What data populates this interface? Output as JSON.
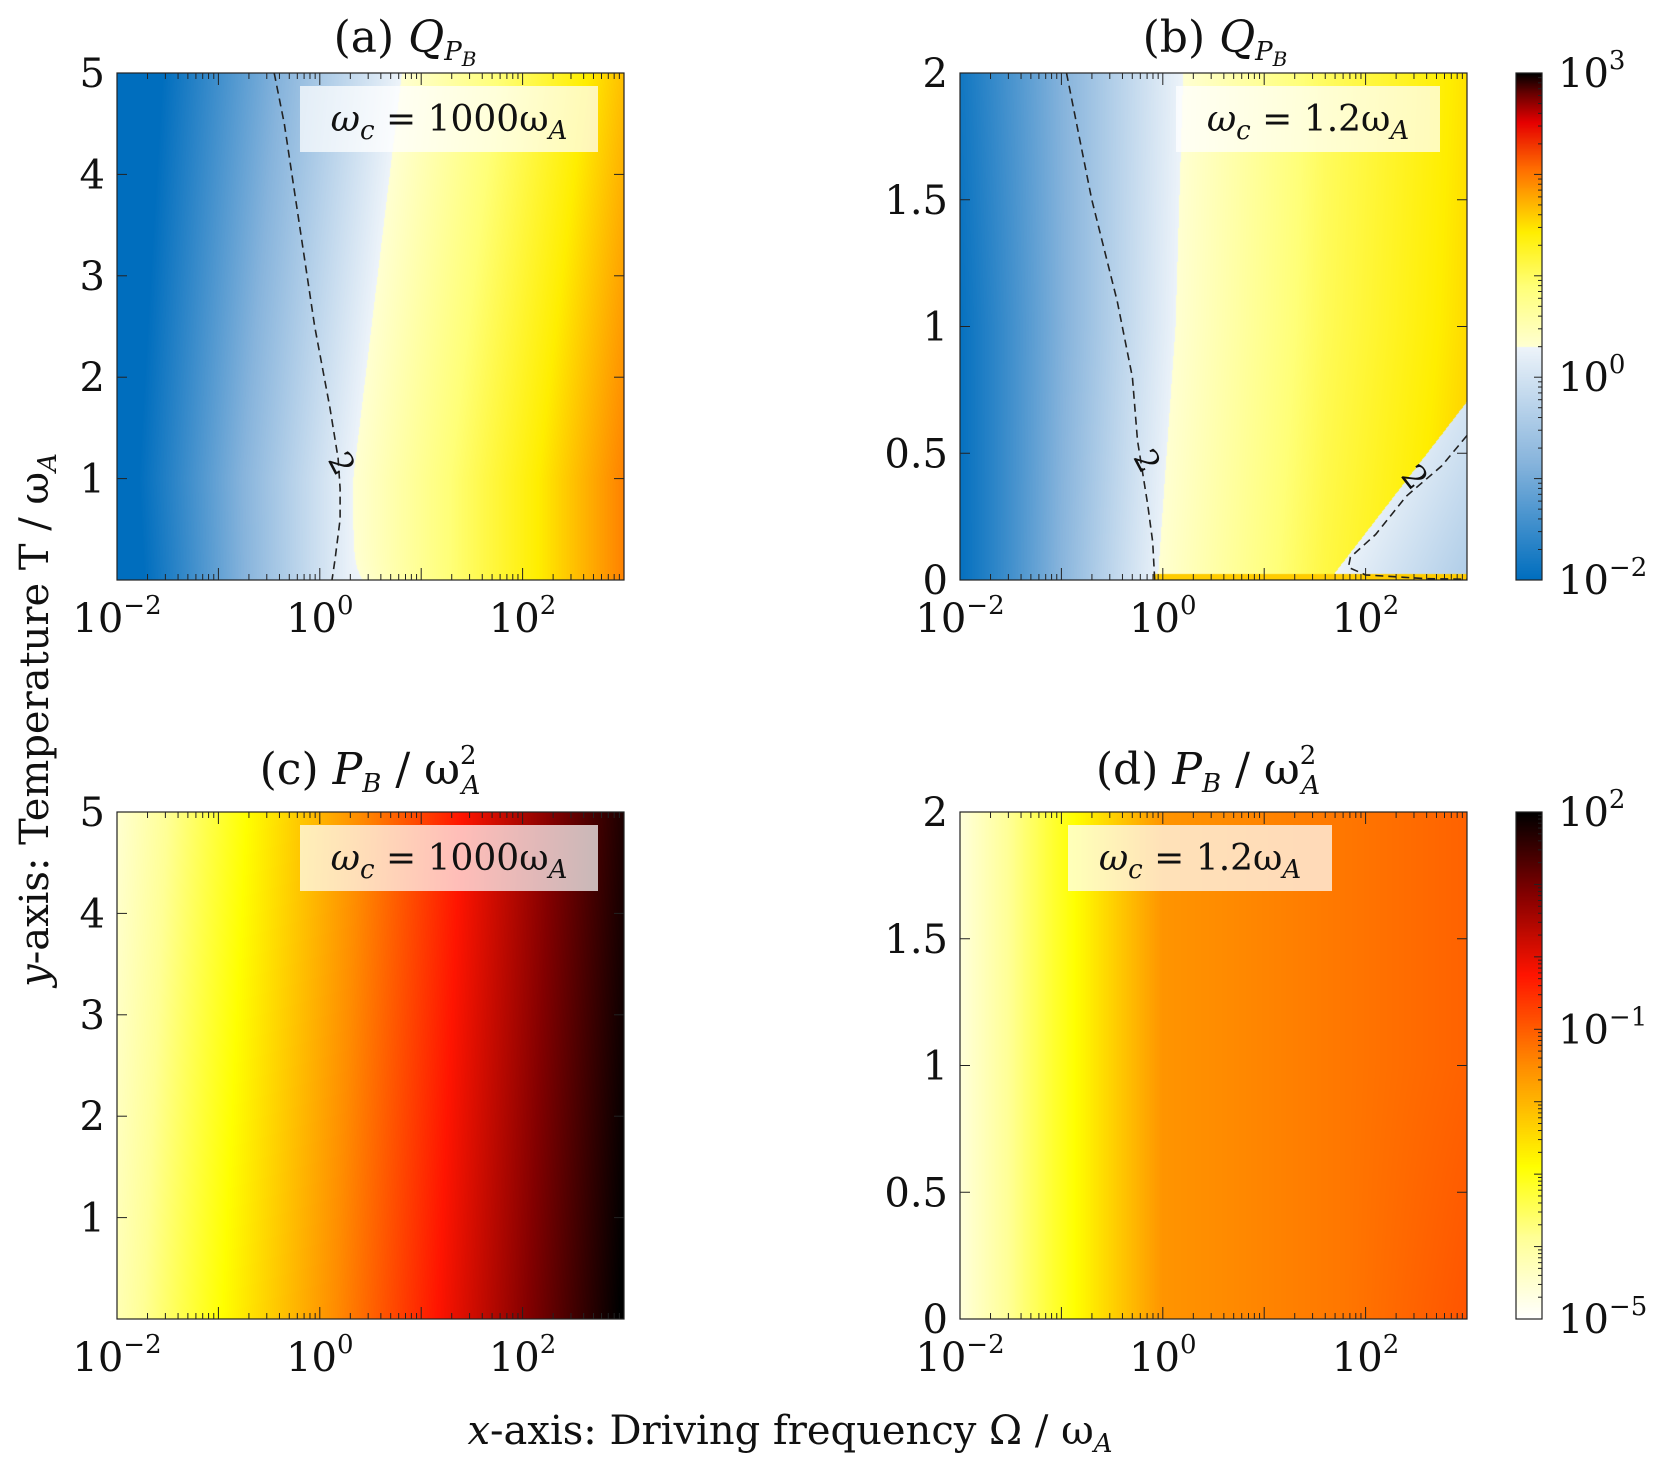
{
  "figure": {
    "xlabel_prefix": "x",
    "xlabel_text": "-axis: Driving frequency Ω / ω",
    "xlabel_sub": "A",
    "ylabel_prefix": "y",
    "ylabel_text": "-axis: Temperature T / ω",
    "ylabel_sub": "A"
  },
  "colorbars": [
    {
      "id": "cb-top",
      "cmap": "diverging",
      "ticks": [
        {
          "base": "10",
          "exp": "3",
          "value": 1000
        },
        {
          "base": "10",
          "exp": "0",
          "value": 1
        },
        {
          "base": "10",
          "exp": "−2",
          "value": 0.01
        }
      ],
      "log_min": -2,
      "log_max": 3
    },
    {
      "id": "cb-bottom",
      "cmap": "hot",
      "ticks": [
        {
          "base": "10",
          "exp": "2",
          "value": 100
        },
        {
          "base": "10",
          "exp": "−1",
          "value": 0.1
        },
        {
          "base": "10",
          "exp": "−5",
          "value": 1e-05
        }
      ],
      "log_min": -5,
      "log_max": 2
    }
  ],
  "chart_data": [
    {
      "type": "heatmap",
      "panel": "(a)",
      "title_prefix": "(a) ",
      "title_main": "Q",
      "title_sub": "P",
      "title_subsub": "B",
      "annotation": "ω",
      "annotation_sub": "c",
      "annotation_rest": " = 1000ω",
      "annotation_sub2": "A",
      "omega_c": 1000,
      "x_scale": "log",
      "xlim": [
        0.01,
        1000
      ],
      "x_ticks": [
        {
          "base": "10",
          "exp": "−2",
          "value": 0.01
        },
        {
          "base": "10",
          "exp": "0",
          "value": 1
        },
        {
          "base": "10",
          "exp": "2",
          "value": 100
        }
      ],
      "ylim": [
        0,
        5
      ],
      "y_ticks": [
        {
          "label": "5",
          "value": 5
        },
        {
          "label": "4",
          "value": 4
        },
        {
          "label": "3",
          "value": 3
        },
        {
          "label": "2",
          "value": 2
        },
        {
          "label": "1",
          "value": 1
        }
      ],
      "contour_level": "2",
      "colorbar": "cb-top",
      "cmap": "diverging",
      "zlim_log": [
        -2,
        3
      ]
    },
    {
      "type": "heatmap",
      "panel": "(b)",
      "title_prefix": "(b) ",
      "title_main": "Q",
      "title_sub": "P",
      "title_subsub": "B",
      "annotation": "ω",
      "annotation_sub": "c",
      "annotation_rest": " = 1.2ω",
      "annotation_sub2": "A",
      "omega_c": 1.2,
      "x_scale": "log",
      "xlim": [
        0.01,
        1000
      ],
      "x_ticks": [
        {
          "base": "10",
          "exp": "−2",
          "value": 0.01
        },
        {
          "base": "10",
          "exp": "0",
          "value": 1
        },
        {
          "base": "10",
          "exp": "2",
          "value": 100
        }
      ],
      "ylim": [
        0,
        2
      ],
      "y_ticks": [
        {
          "label": "2",
          "value": 2
        },
        {
          "label": "1.5",
          "value": 1.5
        },
        {
          "label": "1",
          "value": 1
        },
        {
          "label": "0.5",
          "value": 0.5
        },
        {
          "label": "0",
          "value": 0
        }
      ],
      "contour_level": "2",
      "colorbar": "cb-top",
      "cmap": "diverging",
      "zlim_log": [
        -2,
        3
      ]
    },
    {
      "type": "heatmap",
      "panel": "(c)",
      "title_prefix": "(c) ",
      "title_main": "P",
      "title_sub": "B",
      "title_rest": " / ω",
      "title_sup": "2",
      "title_sub2": "A",
      "annotation": "ω",
      "annotation_sub": "c",
      "annotation_rest": " = 1000ω",
      "annotation_sub2": "A",
      "omega_c": 1000,
      "x_scale": "log",
      "xlim": [
        0.01,
        1000
      ],
      "x_ticks": [
        {
          "base": "10",
          "exp": "−2",
          "value": 0.01
        },
        {
          "base": "10",
          "exp": "0",
          "value": 1
        },
        {
          "base": "10",
          "exp": "2",
          "value": 100
        }
      ],
      "ylim": [
        0,
        5
      ],
      "y_ticks": [
        {
          "label": "5",
          "value": 5
        },
        {
          "label": "4",
          "value": 4
        },
        {
          "label": "3",
          "value": 3
        },
        {
          "label": "2",
          "value": 2
        },
        {
          "label": "1",
          "value": 1
        }
      ],
      "colorbar": "cb-bottom",
      "cmap": "hot",
      "zlim_log": [
        -5,
        2
      ]
    },
    {
      "type": "heatmap",
      "panel": "(d)",
      "title_prefix": "(d) ",
      "title_main": "P",
      "title_sub": "B",
      "title_rest": " / ω",
      "title_sup": "2",
      "title_sub2": "A",
      "annotation": "ω",
      "annotation_sub": "c",
      "annotation_rest": " = 1.2ω",
      "annotation_sub2": "A",
      "omega_c": 1.2,
      "x_scale": "log",
      "xlim": [
        0.01,
        1000
      ],
      "x_ticks": [
        {
          "base": "10",
          "exp": "−2",
          "value": 0.01
        },
        {
          "base": "10",
          "exp": "0",
          "value": 1
        },
        {
          "base": "10",
          "exp": "2",
          "value": 100
        }
      ],
      "ylim": [
        0,
        2
      ],
      "y_ticks": [
        {
          "label": "2",
          "value": 2
        },
        {
          "label": "1.5",
          "value": 1.5
        },
        {
          "label": "1",
          "value": 1
        },
        {
          "label": "0.5",
          "value": 0.5
        },
        {
          "label": "0",
          "value": 0
        }
      ],
      "colorbar": "cb-bottom",
      "cmap": "hot",
      "zlim_log": [
        -5,
        2
      ]
    }
  ]
}
